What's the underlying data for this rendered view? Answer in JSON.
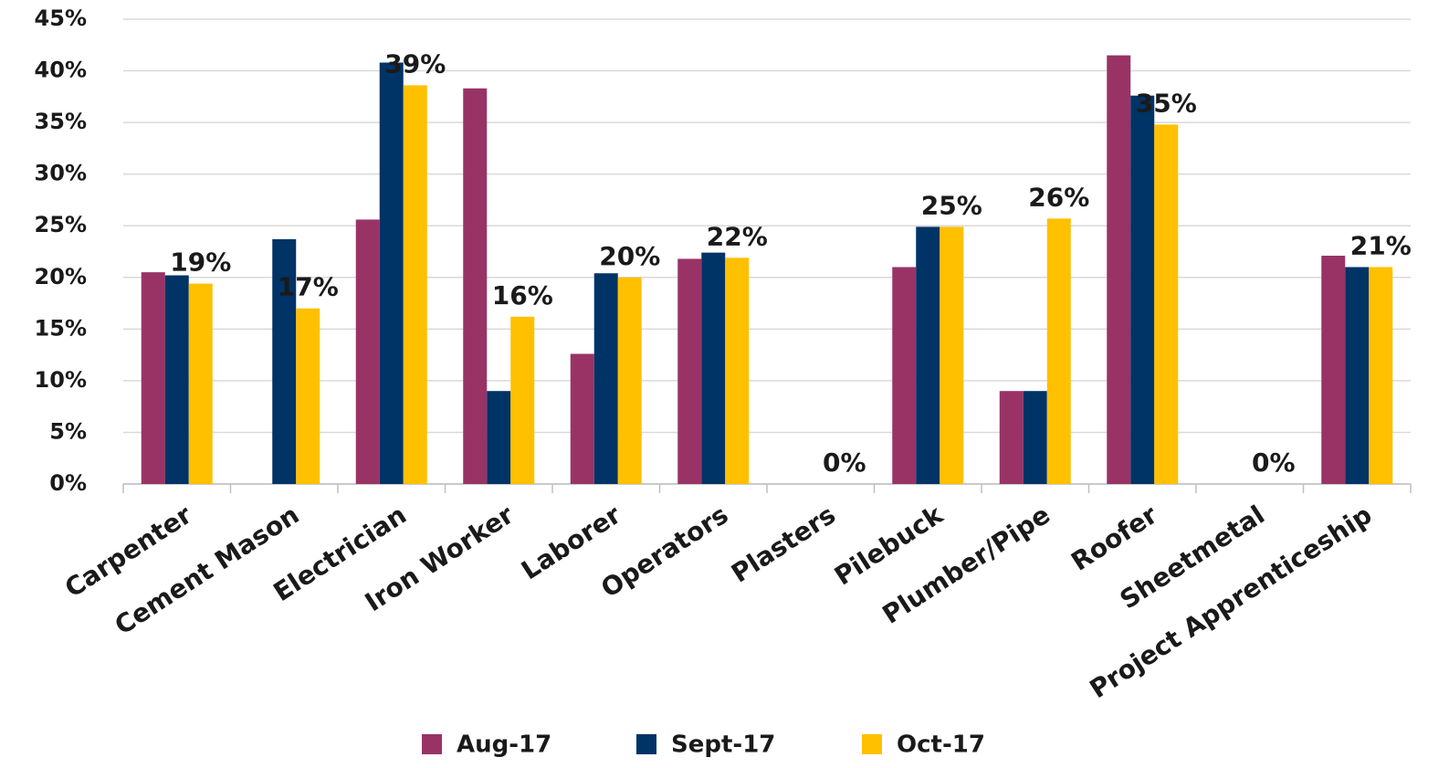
{
  "chart_data": {
    "type": "bar",
    "categories": [
      "Carpenter",
      "Cement Mason",
      "Electrician",
      "Iron Worker",
      "Laborer",
      "Operators",
      "Plasters",
      "Pilebuck",
      "Plumber/Pipe",
      "Roofer",
      "Sheetmetal",
      "Project Apprenticeship"
    ],
    "series": [
      {
        "name": "Aug-17",
        "color": "#993366",
        "values": [
          20.5,
          0,
          25.6,
          38.3,
          12.6,
          21.8,
          0,
          21.0,
          9.0,
          41.5,
          0,
          22.1
        ]
      },
      {
        "name": "Sept-17",
        "color": "#003366",
        "values": [
          20.2,
          23.7,
          40.8,
          9.0,
          20.4,
          22.4,
          0,
          24.9,
          9.0,
          37.6,
          0,
          21.0
        ]
      },
      {
        "name": "Oct-17",
        "color": "#ffc000",
        "values": [
          19.4,
          17.0,
          38.6,
          16.2,
          20.0,
          21.9,
          0,
          24.9,
          25.7,
          34.8,
          0,
          21.0
        ],
        "value_labels": [
          "19%",
          "17%",
          "39%",
          "16%",
          "20%",
          "22%",
          "0%",
          "25%",
          "26%",
          "35%",
          "0%",
          "21%"
        ]
      }
    ],
    "ylim": [
      0,
      45
    ],
    "yticks": [
      {
        "value": 0,
        "label": "0%"
      },
      {
        "value": 5,
        "label": "5%"
      },
      {
        "value": 10,
        "label": "10%"
      },
      {
        "value": 15,
        "label": "15%"
      },
      {
        "value": 20,
        "label": "20%"
      },
      {
        "value": 25,
        "label": "25%"
      },
      {
        "value": 30,
        "label": "30%"
      },
      {
        "value": 35,
        "label": "35%"
      },
      {
        "value": 40,
        "label": "40%"
      },
      {
        "value": 45,
        "label": "45%"
      }
    ],
    "grid": true,
    "legend": "bottom"
  }
}
